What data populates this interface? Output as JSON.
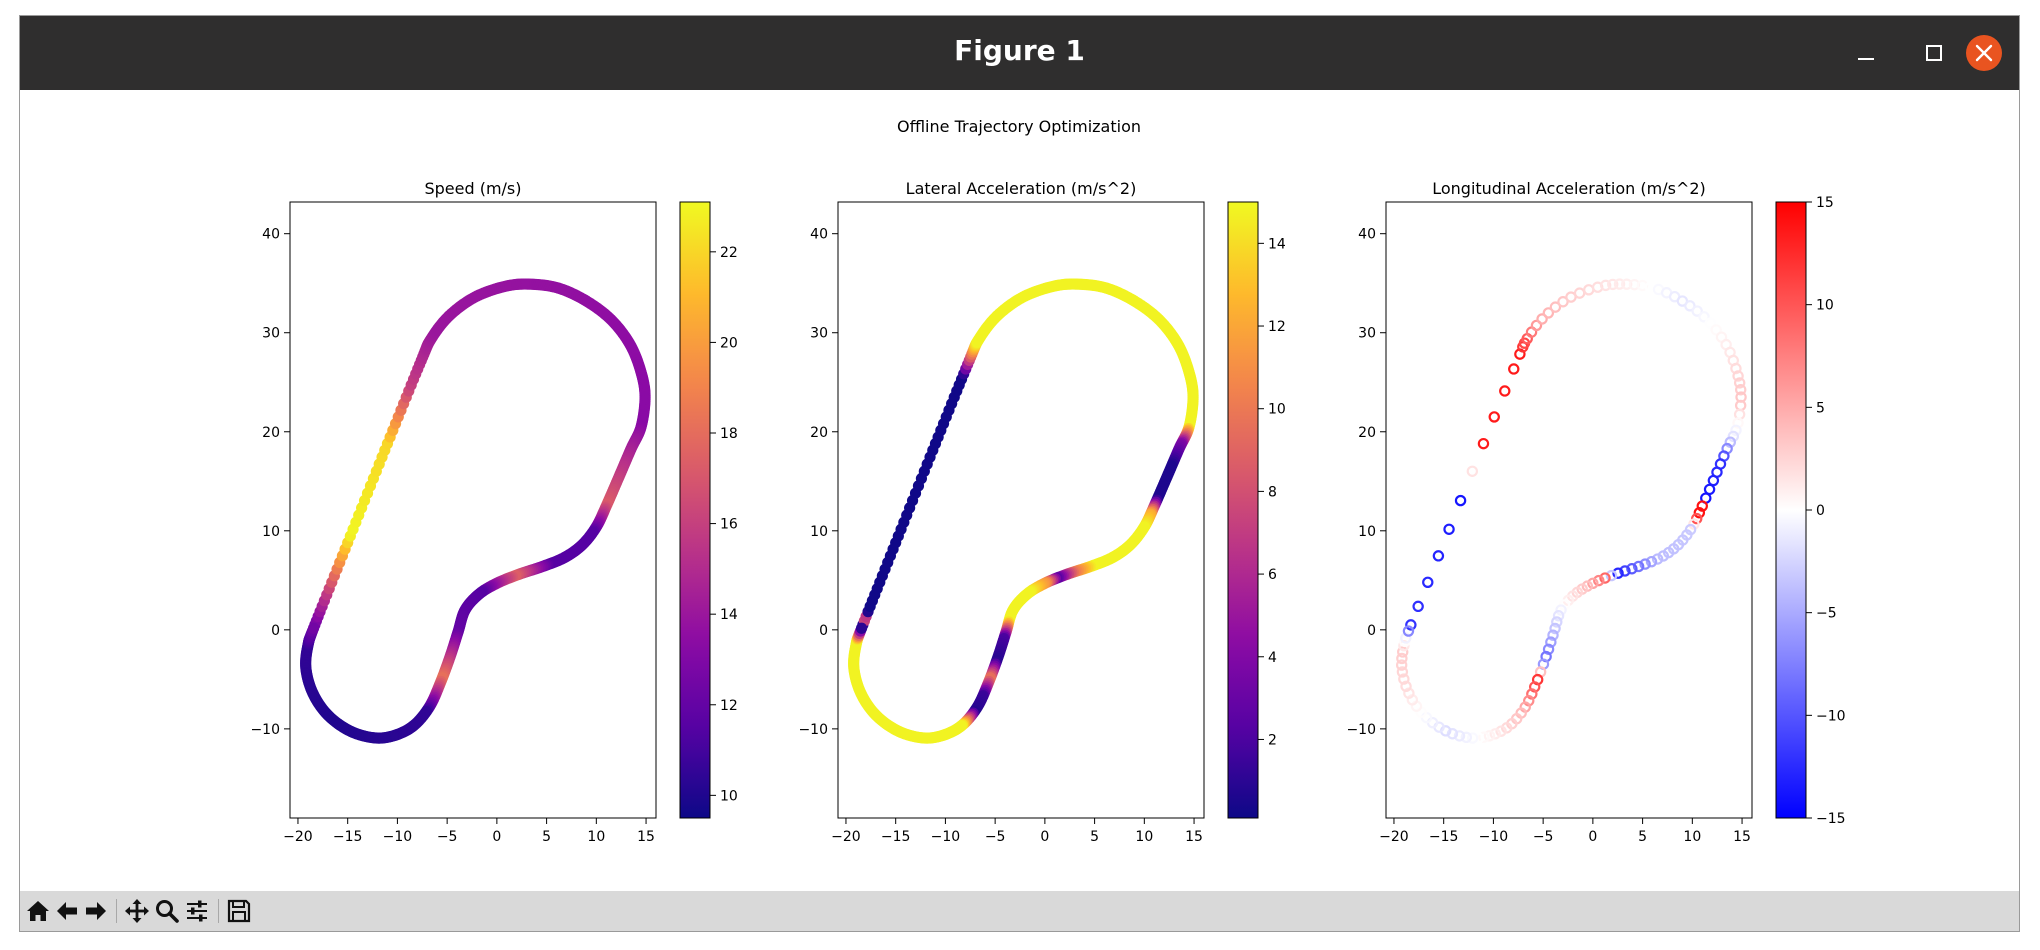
{
  "window": {
    "title": "Figure 1"
  },
  "figure": {
    "suptitle": "Offline Trajectory Optimization"
  },
  "toolbar": {
    "icons": [
      "home-icon",
      "back-arrow-icon",
      "forward-arrow-icon",
      "pan-icon",
      "zoom-icon",
      "configure-subplots-icon",
      "save-icon"
    ]
  },
  "colors": {
    "titlebar": "#2f2e2e",
    "close_button": "#e95420",
    "toolbar": "#d9d9d9"
  },
  "chart_data": [
    {
      "type": "scatter",
      "title": "Speed (m/s)",
      "xlabel": "",
      "ylabel": "",
      "xlim": [
        -20.8,
        16.0
      ],
      "ylim": [
        -19.0,
        43.2
      ],
      "xticks": [
        -20,
        -15,
        -10,
        -5,
        0,
        5,
        10,
        15
      ],
      "yticks": [
        -10,
        0,
        10,
        20,
        30,
        40
      ],
      "colormap": "plasma",
      "colorbar": {
        "range": [
          9.5,
          23.1
        ],
        "ticks": [
          10,
          12,
          14,
          16,
          18,
          20,
          22
        ]
      },
      "color_keyframes": [
        {
          "s": 0.0,
          "v": 12.5
        },
        {
          "s": 0.03,
          "v": 16
        },
        {
          "s": 0.08,
          "v": 23
        },
        {
          "s": 0.16,
          "v": 22
        },
        {
          "s": 0.21,
          "v": 16
        },
        {
          "s": 0.26,
          "v": 14
        },
        {
          "s": 0.52,
          "v": 13.3
        },
        {
          "s": 0.59,
          "v": 17.2
        },
        {
          "s": 0.615,
          "v": 11.5
        },
        {
          "s": 0.66,
          "v": 11.5
        },
        {
          "s": 0.69,
          "v": 17.5
        },
        {
          "s": 0.72,
          "v": 11.5
        },
        {
          "s": 0.76,
          "v": 12
        },
        {
          "s": 0.8,
          "v": 18.3
        },
        {
          "s": 0.83,
          "v": 10.5
        },
        {
          "s": 0.92,
          "v": 10
        },
        {
          "s": 0.985,
          "v": 10.5
        },
        {
          "s": 1.0,
          "v": 12.5
        }
      ]
    },
    {
      "type": "scatter",
      "title": "Lateral Acceleration (m/s^2)",
      "xlabel": "",
      "ylabel": "",
      "xlim": [
        -20.8,
        16.0
      ],
      "ylim": [
        -19.0,
        43.2
      ],
      "xticks": [
        -20,
        -15,
        -10,
        -5,
        0,
        5,
        10,
        15
      ],
      "yticks": [
        -10,
        0,
        10,
        20,
        30,
        40
      ],
      "colormap": "plasma",
      "colorbar": {
        "range": [
          0.1,
          15.0
        ],
        "ticks": [
          2,
          4,
          6,
          8,
          10,
          12,
          14
        ]
      },
      "color_keyframes": [
        {
          "s": 0.0,
          "v": 1.0
        },
        {
          "s": 0.005,
          "v": 10
        },
        {
          "s": 0.012,
          "v": 0.2
        },
        {
          "s": 0.22,
          "v": 0.2
        },
        {
          "s": 0.24,
          "v": 10
        },
        {
          "s": 0.25,
          "v": 14.8
        },
        {
          "s": 0.52,
          "v": 14.8
        },
        {
          "s": 0.535,
          "v": 4
        },
        {
          "s": 0.555,
          "v": 0.6
        },
        {
          "s": 0.585,
          "v": 0.6
        },
        {
          "s": 0.598,
          "v": 12
        },
        {
          "s": 0.61,
          "v": 14.8
        },
        {
          "s": 0.665,
          "v": 14.8
        },
        {
          "s": 0.68,
          "v": 10
        },
        {
          "s": 0.695,
          "v": 2.5
        },
        {
          "s": 0.705,
          "v": 11
        },
        {
          "s": 0.72,
          "v": 14.8
        },
        {
          "s": 0.75,
          "v": 14.8
        },
        {
          "s": 0.765,
          "v": 2
        },
        {
          "s": 0.785,
          "v": 0.8
        },
        {
          "s": 0.8,
          "v": 10
        },
        {
          "s": 0.815,
          "v": 1.5
        },
        {
          "s": 0.83,
          "v": 0.8
        },
        {
          "s": 0.845,
          "v": 14.8
        },
        {
          "s": 0.99,
          "v": 14.8
        },
        {
          "s": 1.0,
          "v": 1.0
        }
      ]
    },
    {
      "type": "scatter",
      "title": "Longitudinal Acceleration (m/s^2)",
      "xlabel": "",
      "ylabel": "",
      "xlim": [
        -20.8,
        16.0
      ],
      "ylim": [
        -19.0,
        43.2
      ],
      "xticks": [
        -20,
        -15,
        -10,
        -5,
        0,
        5,
        10,
        15
      ],
      "yticks": [
        -10,
        0,
        10,
        20,
        30,
        40
      ],
      "colormap": "bwr",
      "colorbar": {
        "range": [
          -15,
          15
        ],
        "ticks": [
          -15,
          -10,
          -5,
          0,
          5,
          10,
          15
        ]
      },
      "color_keyframes": [
        {
          "s": 0.0,
          "v": -12
        },
        {
          "s": 0.13,
          "v": -14
        },
        {
          "s": 0.14,
          "v": 13.5
        },
        {
          "s": 0.24,
          "v": 13.5
        },
        {
          "s": 0.27,
          "v": 5
        },
        {
          "s": 0.3,
          "v": 3
        },
        {
          "s": 0.35,
          "v": 1
        },
        {
          "s": 0.4,
          "v": -1.5
        },
        {
          "s": 0.45,
          "v": 1
        },
        {
          "s": 0.5,
          "v": 3.5
        },
        {
          "s": 0.53,
          "v": -2
        },
        {
          "s": 0.55,
          "v": -12
        },
        {
          "s": 0.585,
          "v": -14
        },
        {
          "s": 0.59,
          "v": 14
        },
        {
          "s": 0.6,
          "v": 14
        },
        {
          "s": 0.61,
          "v": -3
        },
        {
          "s": 0.65,
          "v": -4
        },
        {
          "s": 0.685,
          "v": -13
        },
        {
          "s": 0.695,
          "v": 9
        },
        {
          "s": 0.71,
          "v": 4
        },
        {
          "s": 0.73,
          "v": 1
        },
        {
          "s": 0.76,
          "v": -4
        },
        {
          "s": 0.785,
          "v": -9
        },
        {
          "s": 0.8,
          "v": 12
        },
        {
          "s": 0.83,
          "v": 4
        },
        {
          "s": 0.86,
          "v": 1
        },
        {
          "s": 0.9,
          "v": -2
        },
        {
          "s": 0.95,
          "v": 2
        },
        {
          "s": 0.98,
          "v": 3
        },
        {
          "s": 0.995,
          "v": -2
        },
        {
          "s": 1.0,
          "v": -12
        }
      ]
    }
  ],
  "track": {
    "description_units": "m",
    "waypoints": [
      [
        -18.3,
        0.5
      ],
      [
        -15.0,
        8.8
      ],
      [
        -11.0,
        18.8
      ],
      [
        -7.6,
        27.2
      ],
      [
        -6.6,
        29.4
      ],
      [
        -4.8,
        31.7
      ],
      [
        -2.2,
        33.6
      ],
      [
        0.9,
        34.7
      ],
      [
        3.4,
        34.9
      ],
      [
        6.2,
        34.5
      ],
      [
        9.0,
        33.2
      ],
      [
        11.5,
        31.3
      ],
      [
        13.4,
        28.8
      ],
      [
        14.5,
        26.0
      ],
      [
        14.9,
        23.5
      ],
      [
        14.5,
        20.5
      ],
      [
        13.5,
        18.3
      ],
      [
        12.3,
        15.5
      ],
      [
        11.0,
        12.5
      ],
      [
        10.0,
        10.4
      ],
      [
        8.6,
        8.6
      ],
      [
        6.8,
        7.3
      ],
      [
        4.6,
        6.4
      ],
      [
        2.2,
        5.6
      ],
      [
        0.0,
        4.7
      ],
      [
        -1.8,
        3.6
      ],
      [
        -3.2,
        2.0
      ],
      [
        -3.9,
        -0.2
      ],
      [
        -4.7,
        -2.7
      ],
      [
        -5.7,
        -5.4
      ],
      [
        -6.8,
        -7.8
      ],
      [
        -8.4,
        -9.7
      ],
      [
        -10.4,
        -10.7
      ],
      [
        -12.4,
        -10.9
      ],
      [
        -14.8,
        -10.2
      ],
      [
        -17.0,
        -8.6
      ],
      [
        -18.5,
        -6.4
      ],
      [
        -19.2,
        -3.9
      ],
      [
        -19.0,
        -1.6
      ]
    ]
  }
}
